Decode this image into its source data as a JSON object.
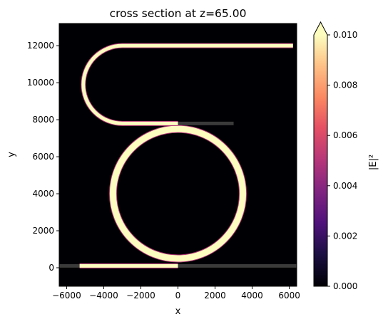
{
  "chart_data": {
    "type": "heatmap",
    "title": "cross section at z=65.00",
    "xlabel": "x",
    "ylabel": "y",
    "xlim": [
      -6400,
      6400
    ],
    "ylim": [
      -1000,
      13200
    ],
    "xticks": [
      -6000,
      -4000,
      -2000,
      0,
      2000,
      4000,
      6000
    ],
    "xtick_labels": [
      "−6000",
      "−4000",
      "−2000",
      "0",
      "2000",
      "4000",
      "6000"
    ],
    "yticks": [
      0,
      2000,
      4000,
      6000,
      8000,
      10000,
      12000
    ],
    "ytick_labels": [
      "0",
      "2000",
      "4000",
      "6000",
      "8000",
      "10000",
      "12000"
    ],
    "colorbar": {
      "label": "|E|²",
      "colormap": "magma",
      "range": [
        0,
        0.01
      ],
      "extend": "max",
      "ticks": [
        0,
        0.002,
        0.004,
        0.006,
        0.008,
        0.01
      ],
      "tick_labels": [
        "0.000",
        "0.002",
        "0.004",
        "0.006",
        "0.008",
        "0.010"
      ]
    },
    "background_color": "#000004",
    "structures": {
      "ring": {
        "center": [
          0,
          4000
        ],
        "radius": 3500,
        "width": 400,
        "intensity": "saturated (>0.010)"
      },
      "bus_waveguide_bottom": {
        "y": 100,
        "x_extent": [
          -6400,
          6400
        ],
        "lit_segment": [
          -5300,
          0
        ],
        "note": "bright from source to coupling region, dim grey elsewhere"
      },
      "drop_waveguide_top": {
        "y": 7800,
        "x_extent": [
          -3000,
          3000
        ],
        "lit_segment": [
          -3000,
          0
        ],
        "note": "dim grey segment to the right of coupling point"
      },
      "bend": {
        "center": [
          -3000,
          9900
        ],
        "radius": 2100,
        "from": [
          -3000,
          7800
        ],
        "to": [
          -3000,
          12000
        ]
      },
      "output_waveguide": {
        "y": 12000,
        "x_extent": [
          -3000,
          6200
        ]
      }
    }
  }
}
